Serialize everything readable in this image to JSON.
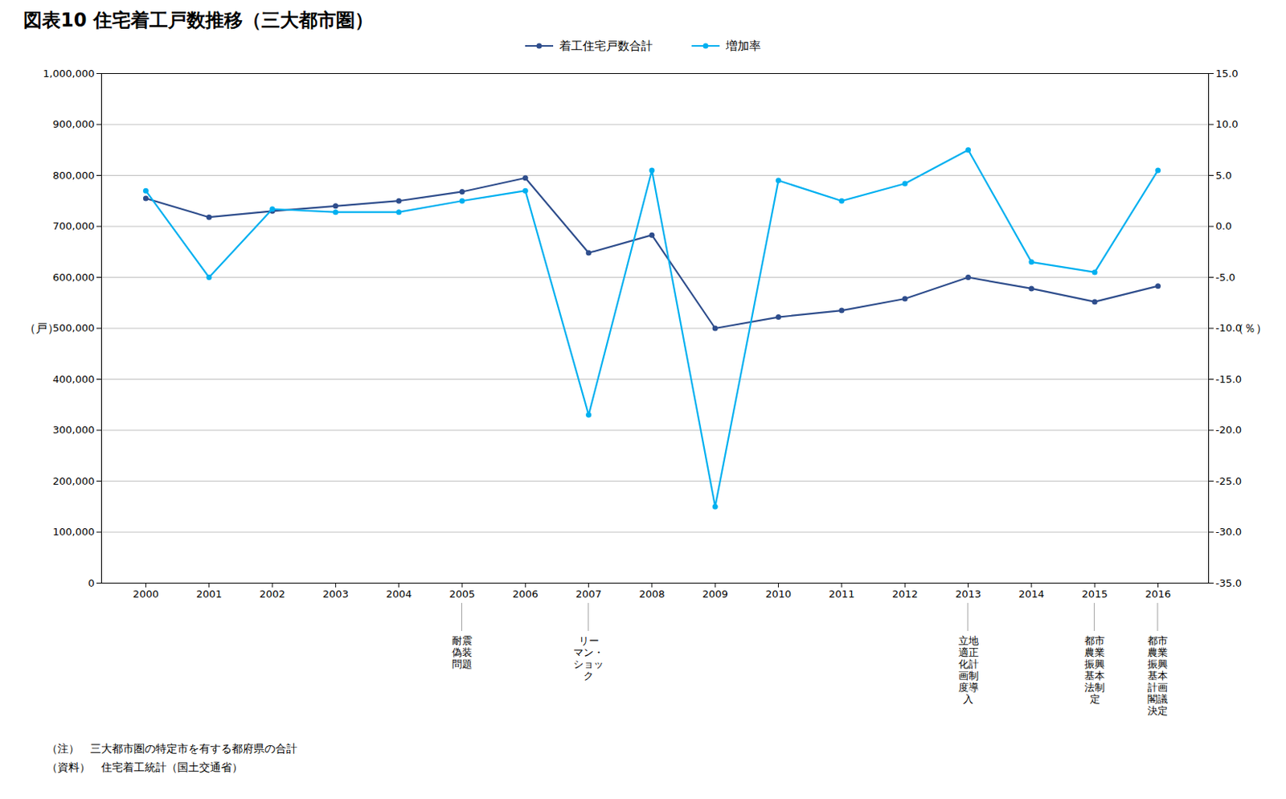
{
  "chart_data": {
    "type": "line",
    "title": "図表10  住宅着工戸数推移（三大都市圏）",
    "x": [
      2000,
      2001,
      2002,
      2003,
      2004,
      2005,
      2006,
      2007,
      2008,
      2009,
      2010,
      2011,
      2012,
      2013,
      2014,
      2015,
      2016
    ],
    "xlim": [
      1999.3,
      2016.8
    ],
    "xticks": [
      2000,
      2001,
      2002,
      2003,
      2004,
      2005,
      2006,
      2007,
      2008,
      2009,
      2010,
      2011,
      2012,
      2013,
      2014,
      2015,
      2016
    ],
    "ylim": [
      0,
      1000000
    ],
    "yticks": [
      0,
      {
        "value": 100000,
        "label": "100,000"
      },
      {
        "value": 200000,
        "label": "200,000"
      },
      {
        "value": 300000,
        "label": "300,000"
      },
      {
        "value": 400000,
        "label": "400,000"
      },
      {
        "value": 500000,
        "label": "500,000"
      },
      {
        "value": 600000,
        "label": "600,000"
      },
      {
        "value": 700000,
        "label": "700,000"
      },
      {
        "value": 800000,
        "label": "800,000"
      },
      {
        "value": 900000,
        "label": "900,000"
      },
      {
        "value": 1000000,
        "label": "1,000,000"
      }
    ],
    "y2lim": [
      -35.0,
      15.0
    ],
    "y2ticks": [
      {
        "value": 15.0,
        "label": "15.0"
      },
      {
        "value": 10.0,
        "label": "10.0"
      },
      {
        "value": 5.0,
        "label": "5.0"
      },
      {
        "value": 0.0,
        "label": "0.0"
      },
      {
        "value": -5.0,
        "label": "-5.0"
      },
      {
        "value": -10.0,
        "label": "-10.0"
      },
      {
        "value": -15.0,
        "label": "-15.0"
      },
      {
        "value": -20.0,
        "label": "-20.0"
      },
      {
        "value": -25.0,
        "label": "-25.0"
      },
      {
        "value": -30.0,
        "label": "-30.0"
      },
      {
        "value": -35.0,
        "label": "-35.0"
      }
    ],
    "ylabel": "（戸）",
    "y2label": "（％）",
    "series": [
      {
        "name": "着工住宅戸数合計",
        "color": "#2e4d8c",
        "values": [
          755000,
          718000,
          730000,
          740000,
          750000,
          768000,
          795000,
          648000,
          683000,
          500000,
          522000,
          535000,
          558000,
          600000,
          578000,
          552000,
          583000
        ]
      },
      {
        "name": "増加率",
        "color": "#00b0f0",
        "axis": "y2",
        "values": [
          3.5,
          -5.0,
          1.7,
          1.4,
          1.4,
          2.5,
          3.5,
          -18.5,
          5.5,
          -27.5,
          4.5,
          2.5,
          4.2,
          7.5,
          -3.5,
          -4.5,
          5.5
        ]
      }
    ],
    "marker": "circle",
    "grid": true,
    "legend": "top",
    "annotations": [
      {
        "x": 2005,
        "text": "耐震\n偽装\n問題"
      },
      {
        "x": 2007,
        "text": "リー\nマン・\nショッ\nク"
      },
      {
        "x": 2013,
        "text": "立地\n適正\n化計\n画制\n度導\n入"
      },
      {
        "x": 2015,
        "text": "都市\n農業\n振興\n基本\n法制\n定"
      },
      {
        "x": 2016,
        "text": "都市\n農業\n振興\n基本\n計画\n閣議\n決定"
      }
    ],
    "notes": [
      "（注）　三大都市圏の特定市を有する都府県の合計",
      "（資料）　住宅着工統計（国土交通省）"
    ]
  }
}
